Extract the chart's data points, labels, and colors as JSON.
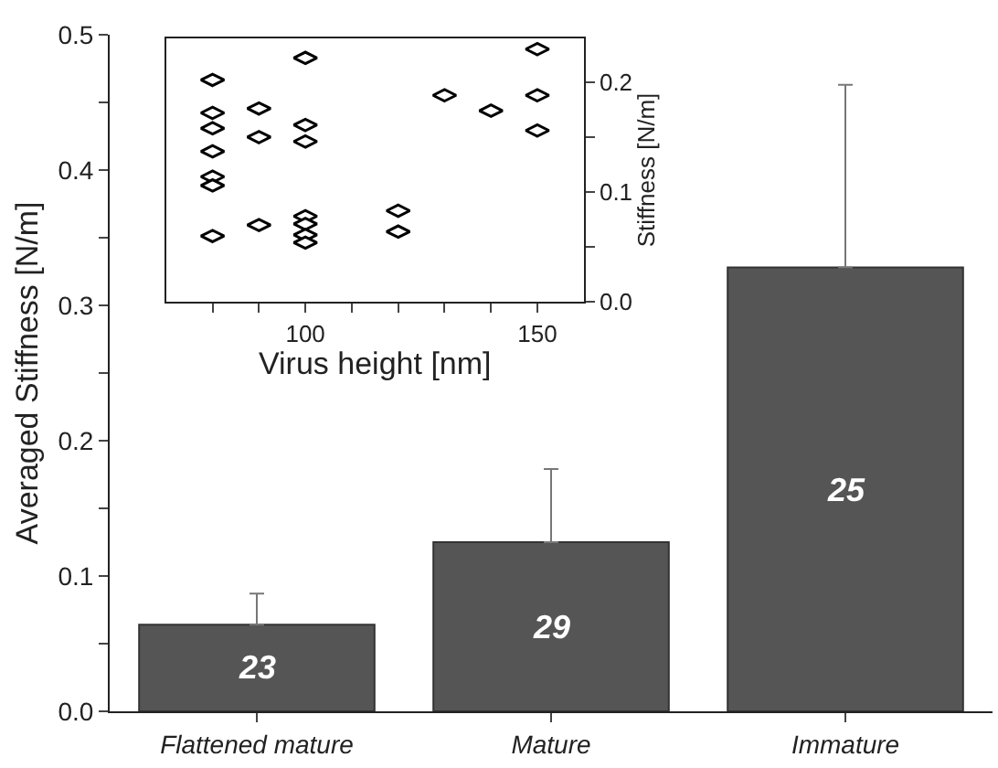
{
  "chart_data": [
    {
      "type": "bar",
      "ylabel": "Averaged Stiffness [N/m]",
      "categories": [
        "Flattened mature",
        "Mature",
        "Immature"
      ],
      "values": [
        0.064,
        0.125,
        0.328
      ],
      "errors": [
        [
          0.064,
          0.087
        ],
        [
          0.125,
          0.179
        ],
        [
          0.328,
          0.463
        ]
      ],
      "annotations": [
        "23",
        "29",
        "25"
      ],
      "color": "#555555",
      "ylim": [
        0,
        0.5
      ],
      "yticks": [
        {
          "value": 0,
          "label": "0.0"
        },
        {
          "value": 0.05,
          "label": null
        },
        {
          "value": 0.1,
          "label": "0.1"
        },
        {
          "value": 0.15,
          "label": null
        },
        {
          "value": 0.2,
          "label": "0.2"
        },
        {
          "value": 0.25,
          "label": null
        },
        {
          "value": 0.3,
          "label": "0.3"
        },
        {
          "value": 0.35,
          "label": null
        },
        {
          "value": 0.4,
          "label": "0.4"
        },
        {
          "value": 0.45,
          "label": null
        },
        {
          "value": 0.5,
          "label": "0.5"
        }
      ]
    },
    {
      "type": "scatter",
      "xlabel": "Virus height [nm]",
      "ylabel": "Stiffness [N/m]",
      "marker": "diamond",
      "color": "#000000",
      "x": [
        80,
        80,
        80,
        80,
        80,
        80,
        80,
        90,
        90,
        90,
        100,
        100,
        100,
        100,
        100,
        100,
        100,
        120,
        120,
        130,
        140,
        150,
        150,
        150
      ],
      "values": [
        0.202,
        0.172,
        0.158,
        0.137,
        0.114,
        0.106,
        0.06,
        0.176,
        0.15,
        0.07,
        0.222,
        0.161,
        0.146,
        0.078,
        0.071,
        0.061,
        0.054,
        0.083,
        0.064,
        0.188,
        0.174,
        0.23,
        0.188,
        0.156
      ],
      "xlim": [
        70,
        160
      ],
      "xticks": [
        {
          "value": 80,
          "label": null
        },
        {
          "value": 90,
          "label": null
        },
        100,
        {
          "value": 110,
          "label": null
        },
        {
          "value": 120,
          "label": null
        },
        {
          "value": 130,
          "label": null
        },
        {
          "value": 140,
          "label": null
        },
        150
      ],
      "ylim": [
        0,
        0.24
      ],
      "yticks": [
        {
          "value": 0,
          "label": "0.0"
        },
        {
          "value": 0.05,
          "label": null
        },
        {
          "value": 0.1,
          "label": "0.1"
        },
        {
          "value": 0.15,
          "label": null
        },
        {
          "value": 0.2,
          "label": "0.2"
        }
      ]
    }
  ]
}
